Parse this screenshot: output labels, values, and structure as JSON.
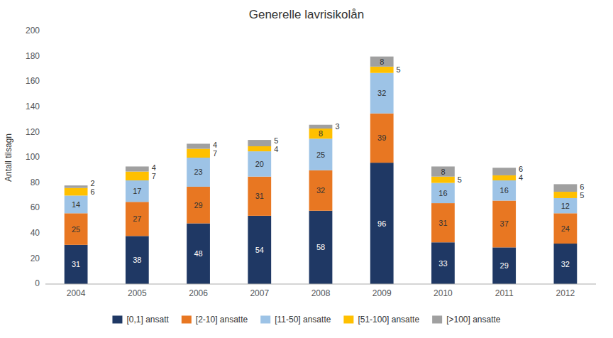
{
  "chart_data": {
    "type": "bar",
    "stacked": true,
    "data_labels": true,
    "grid": false,
    "legend": "bottom",
    "title": "Generelle lavrisikolån",
    "ylabel": "Antall tilsagn",
    "categories": [
      "2004",
      "2005",
      "2006",
      "2007",
      "2008",
      "2009",
      "2010",
      "2011",
      "2012"
    ],
    "series": [
      {
        "name": "[0,1] ansatt",
        "color": "#1F3864",
        "values": [
          31,
          38,
          48,
          54,
          58,
          96,
          33,
          29,
          32
        ]
      },
      {
        "name": "[2-10] ansatte",
        "color": "#E87722",
        "values": [
          25,
          27,
          29,
          31,
          32,
          39,
          31,
          37,
          24
        ]
      },
      {
        "name": "[11-50] ansatte",
        "color": "#9DC3E6",
        "values": [
          14,
          17,
          23,
          20,
          25,
          32,
          16,
          16,
          12
        ]
      },
      {
        "name": "[51-100] ansatte",
        "color": "#FFC000",
        "values": [
          6,
          7,
          7,
          4,
          8,
          5,
          5,
          4,
          5
        ]
      },
      {
        "name": "[>100] ansatte",
        "color": "#A0A0A0",
        "values": [
          2,
          4,
          4,
          5,
          3,
          8,
          8,
          6,
          6
        ]
      }
    ],
    "ylim": [
      0,
      200
    ],
    "yticks": [
      0,
      20,
      40,
      60,
      80,
      100,
      120,
      140,
      160,
      180,
      200
    ]
  }
}
